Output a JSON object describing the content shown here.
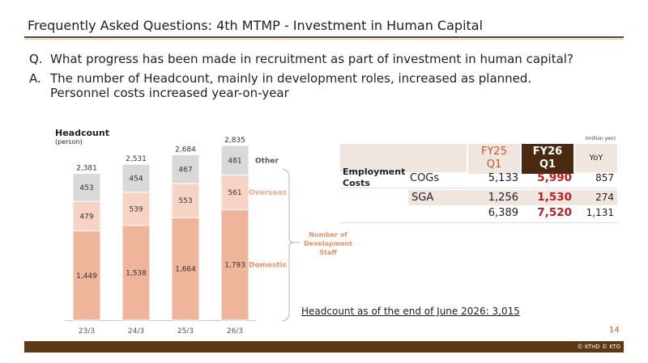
{
  "header": {
    "title": "Frequently Asked Questions: 4th MTMP - Investment in Human Capital"
  },
  "qa": {
    "q_label": "Q.",
    "q_text": "What progress has been made in recruitment as part of investment in human capital?",
    "a_label": "A.",
    "a_line1": "The number of Headcount, mainly in development roles, increased as planned.",
    "a_line2": "Personnel costs increased year-on-year"
  },
  "chart_data": {
    "type": "bar",
    "title": "Headcount",
    "subtitle": "(person)",
    "categories": [
      "23/3",
      "24/3",
      "25/3",
      "26/3"
    ],
    "series": [
      {
        "name": "Domestic",
        "values": [
          1449,
          1538,
          1664,
          1793
        ],
        "color": "#efb59a"
      },
      {
        "name": "Overseas",
        "values": [
          479,
          539,
          553,
          561
        ],
        "color": "#f6d3c4"
      },
      {
        "name": "Other",
        "values": [
          453,
          454,
          467,
          481
        ],
        "color": "#d9d9d9"
      }
    ],
    "totals": [
      "2,381",
      "2,531",
      "2,684",
      "2,835"
    ],
    "labels": {
      "Domestic": [
        "1,449",
        "1,538",
        "1,664",
        "1,793"
      ],
      "Overseas": [
        "479",
        "539",
        "553",
        "561"
      ],
      "Other": [
        "453",
        "454",
        "467",
        "481"
      ]
    },
    "group_label": [
      "Number of",
      "Development",
      "Staff"
    ]
  },
  "table": {
    "unit": "(million yen)",
    "col_fy25": [
      "FY25",
      "Q1"
    ],
    "col_fy26": [
      "FY26",
      "Q1"
    ],
    "col_yoy": "YoY",
    "group_label_1": "Employment",
    "group_label_2": "Costs",
    "rows": [
      {
        "label": "COGs",
        "fy25": "5,133",
        "fy26": "5,990",
        "yoy": "857"
      },
      {
        "label": "SGA",
        "fy25": "1,256",
        "fy26": "1,530",
        "yoy": "274"
      },
      {
        "label": "",
        "fy25": "6,389",
        "fy26": "7,520",
        "yoy": "1,131"
      }
    ]
  },
  "note": "Headcount as of the end of June 2026: 3,015",
  "page_number": "14",
  "copyright": "© KTHD © KTG",
  "colors": {
    "brown": "#5e3714",
    "header_dark": "#4a2a10",
    "header_light": "#efe6df",
    "accent": "#c05a28",
    "red": "#b41e1e"
  }
}
